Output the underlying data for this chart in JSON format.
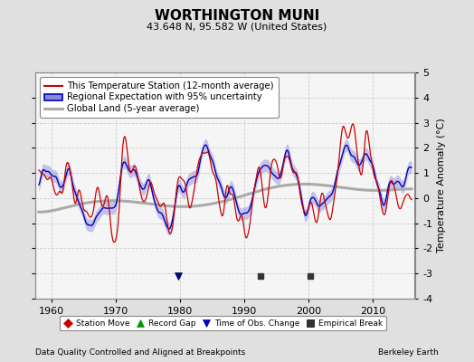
{
  "title": "WORTHINGTON MUNI",
  "subtitle": "43.648 N, 95.582 W (United States)",
  "ylabel": "Temperature Anomaly (°C)",
  "xlabel_note": "Data Quality Controlled and Aligned at Breakpoints",
  "credit": "Berkeley Earth",
  "ylim": [
    -4,
    5
  ],
  "xlim": [
    1957.5,
    2016.5
  ],
  "xticks": [
    1960,
    1970,
    1980,
    1990,
    2000,
    2010
  ],
  "yticks_right": [
    -4,
    -3,
    -2,
    -1,
    0,
    1,
    2,
    3,
    4,
    5
  ],
  "yticks_left": [
    -4,
    -3,
    -2,
    -1,
    0,
    1,
    2,
    3,
    4
  ],
  "bg_color": "#e0e0e0",
  "plot_bg_color": "#f5f5f5",
  "grid_color": "#cccccc",
  "station_color": "#cc0000",
  "regional_line_color": "#0000bb",
  "regional_fill_color": "#8888dd",
  "global_color": "#aaaaaa",
  "legend_items": [
    {
      "label": "This Temperature Station (12-month average)",
      "color": "#cc0000",
      "lw": 1.5
    },
    {
      "label": "Regional Expectation with 95% uncertainty",
      "color": "#0000bb",
      "fill": "#aaaaee"
    },
    {
      "label": "Global Land (5-year average)",
      "color": "#aaaaaa",
      "lw": 2.5
    }
  ],
  "marker_legend": [
    {
      "label": "Station Move",
      "marker": "D",
      "color": "#cc0000"
    },
    {
      "label": "Record Gap",
      "marker": "^",
      "color": "#009900"
    },
    {
      "label": "Time of Obs. Change",
      "marker": "v",
      "color": "#0000bb"
    },
    {
      "label": "Empirical Break",
      "marker": "s",
      "color": "#333333"
    }
  ],
  "markers": {
    "time_of_obs": [
      1979.7
    ],
    "empirical_break": [
      1992.5,
      2000.3
    ]
  },
  "marker_y": -3.1,
  "figsize": [
    5.24,
    4.0
  ],
  "dpi": 100
}
